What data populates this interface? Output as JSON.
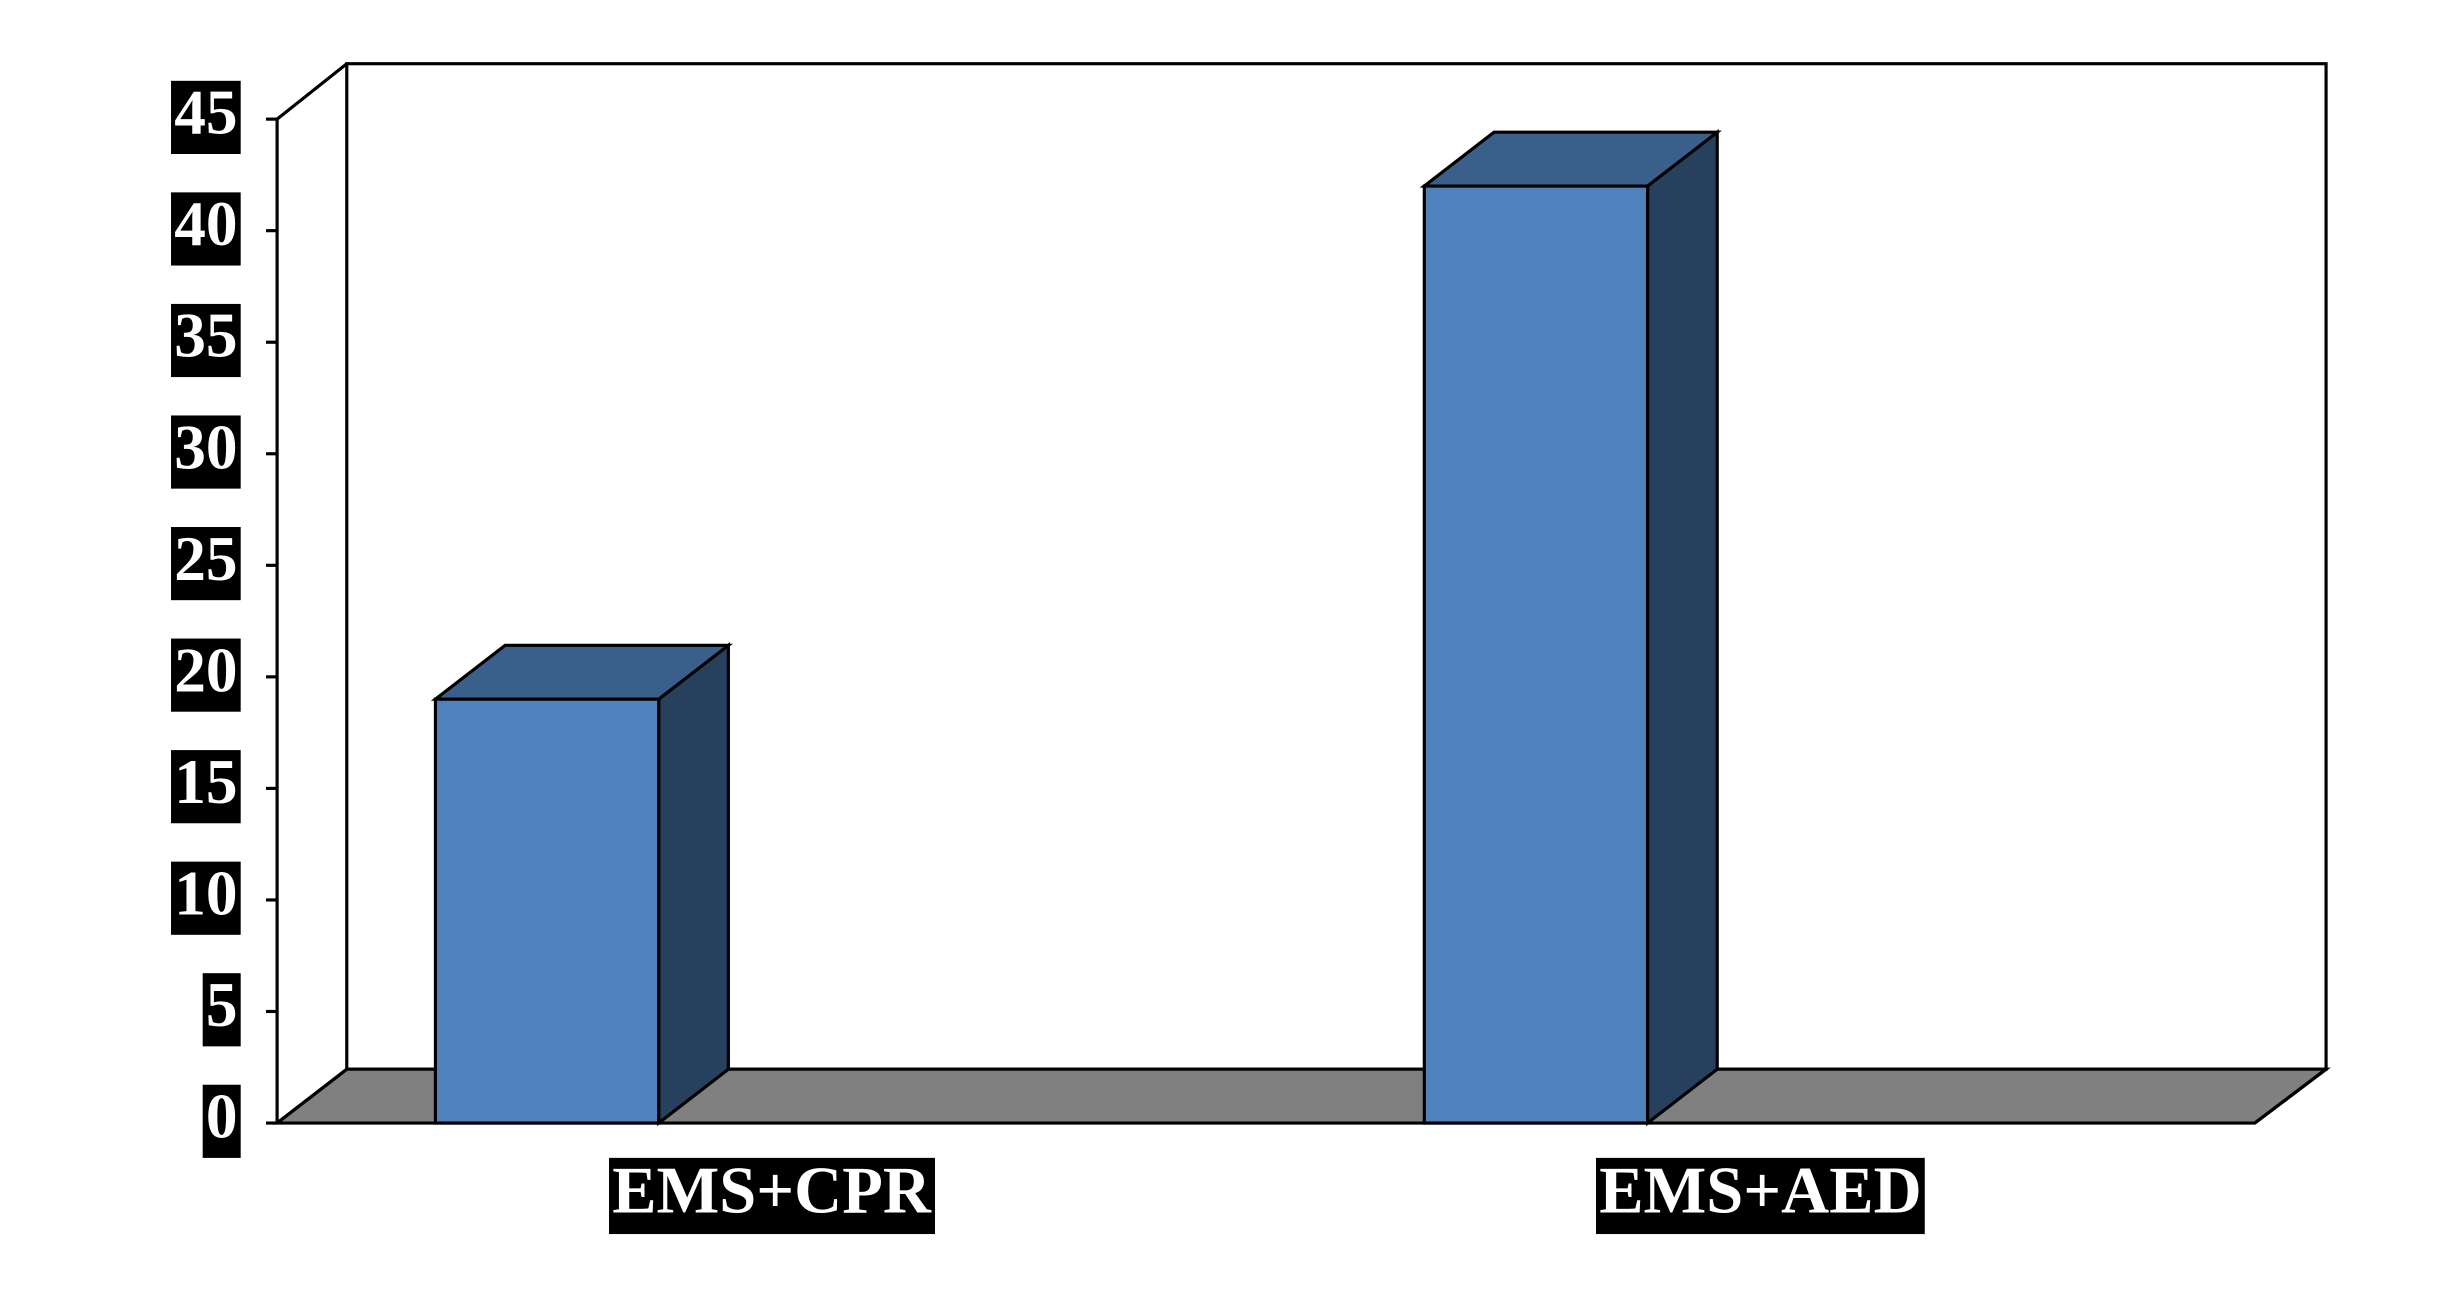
{
  "chart_data": {
    "type": "bar",
    "categories": [
      "EMS+CPR",
      "EMS+AED"
    ],
    "values": [
      19,
      42
    ],
    "color": "#4f81bd",
    "ylim": [
      0,
      45
    ],
    "yticks": [
      0,
      5,
      10,
      15,
      20,
      25,
      30,
      35,
      40,
      45
    ],
    "grid": false
  }
}
